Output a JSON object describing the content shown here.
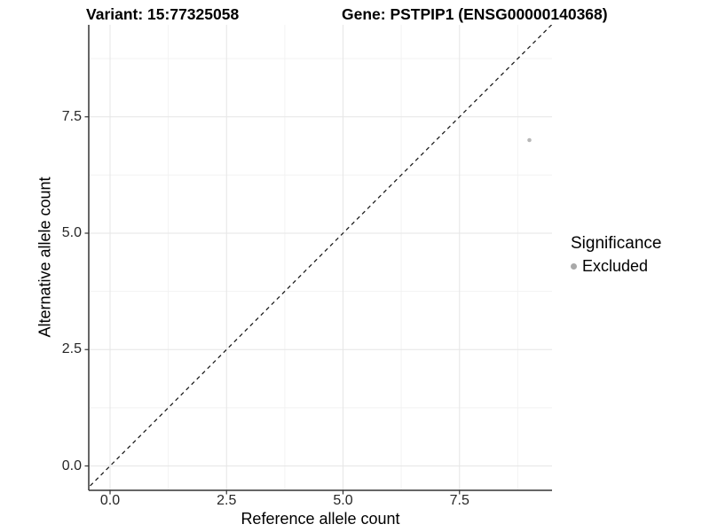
{
  "chart_data": {
    "type": "scatter",
    "title_left": "Variant: 15:77325058",
    "title_right": "Gene: PSTPIP1 (ENSG00000140368)",
    "xlabel": "Reference allele count",
    "ylabel": "Alternative allele count",
    "xlim": [
      -0.45,
      9.45
    ],
    "ylim": [
      -0.45,
      9.45
    ],
    "x_ticks": {
      "values": [
        0,
        2.5,
        5,
        7.5
      ],
      "labels": [
        "0.0",
        "2.5",
        "5.0",
        "7.5"
      ]
    },
    "y_ticks": {
      "values": [
        0,
        2.5,
        5,
        7.5
      ],
      "labels": [
        "0.0",
        "2.5",
        "5.0",
        "7.5"
      ]
    },
    "minor_gridlines": [
      1.25,
      3.75,
      6.25,
      8.75
    ],
    "grid": "on",
    "reference_line": {
      "slope": 1,
      "intercept": 0,
      "style": "dashed",
      "color": "#1f1f1f"
    },
    "series": [
      {
        "name": "Excluded",
        "color": "#b8b8b8",
        "points": [
          {
            "x": 9,
            "y": 7
          }
        ]
      }
    ],
    "legend": {
      "title": "Significance",
      "position": "right",
      "items": [
        {
          "label": "Excluded",
          "color": "#a9a9a9"
        }
      ]
    },
    "colors": {
      "background": "#ffffff",
      "axis_line": "#333333",
      "tick_mark": "#333333",
      "major_grid": "#e6e6e6",
      "minor_grid": "#f2f2f2",
      "axis_text": "#262626",
      "title_text": "#000000"
    }
  }
}
